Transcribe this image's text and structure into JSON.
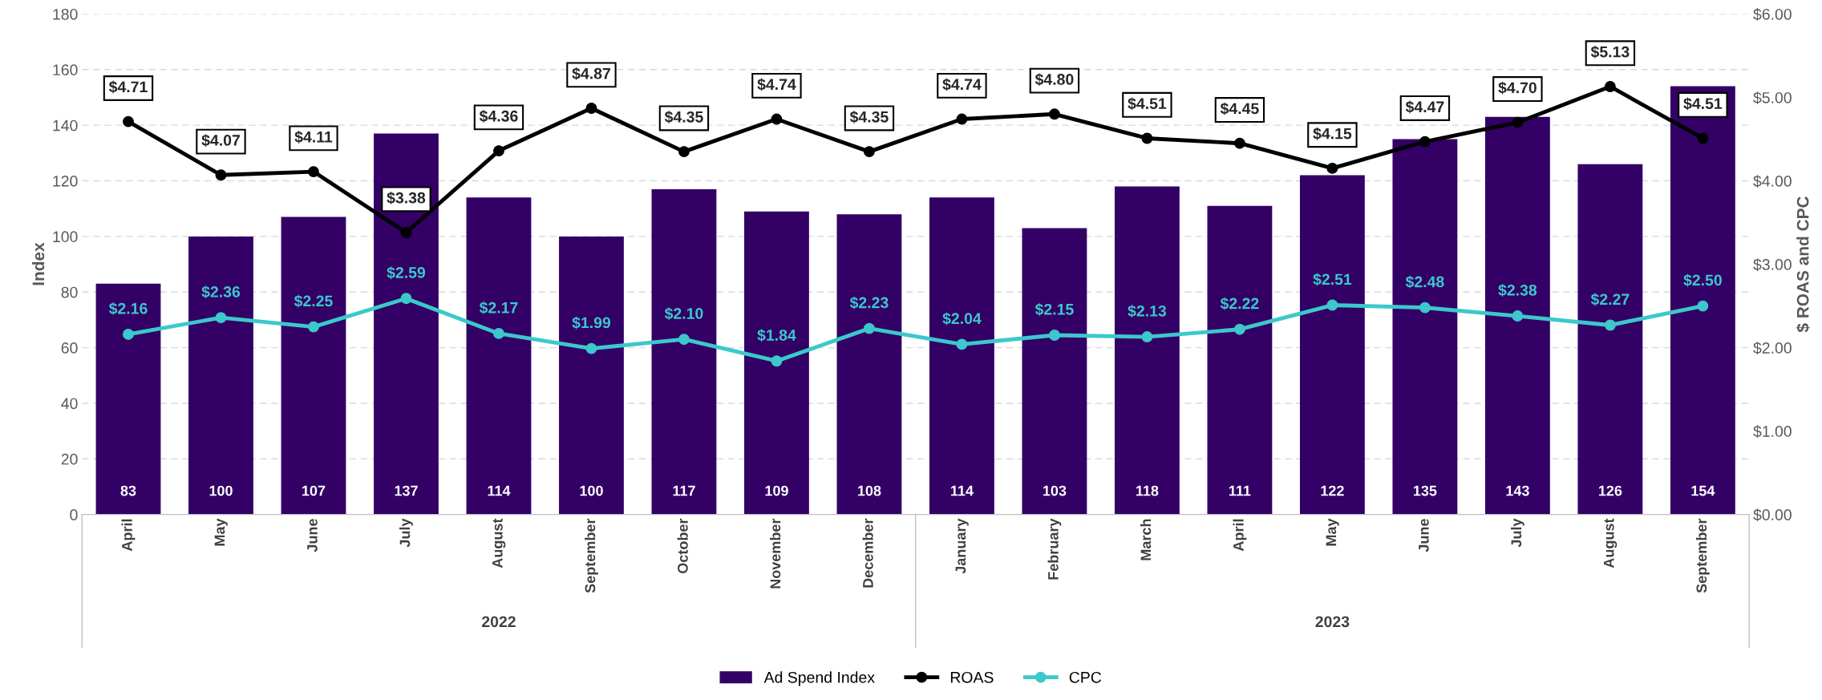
{
  "chart_data": {
    "type": "bar",
    "ylabel": "Index",
    "y2label": "$ ROAS and CPC",
    "categories": [
      "April",
      "May",
      "June",
      "July",
      "August",
      "September",
      "October",
      "November",
      "December",
      "January",
      "February",
      "March",
      "April",
      "May",
      "June",
      "July",
      "August",
      "September"
    ],
    "series": [
      {
        "name": "Ad Spend Index",
        "color": "#330066",
        "values": [
          83,
          100,
          107,
          137,
          114,
          100,
          117,
          109,
          108,
          114,
          103,
          118,
          111,
          122,
          135,
          143,
          126,
          154
        ],
        "value_labels": [
          "83",
          "100",
          "107",
          "137",
          "114",
          "100",
          "117",
          "109",
          "108",
          "114",
          "103",
          "118",
          "111",
          "122",
          "135",
          "143",
          "126",
          "154"
        ]
      },
      {
        "name": "ROAS",
        "type": "line",
        "axis": "y2",
        "color": "#000000",
        "marker": "circle",
        "values": [
          4.71,
          4.07,
          4.11,
          3.38,
          4.36,
          4.87,
          4.35,
          4.74,
          4.35,
          4.74,
          4.8,
          4.51,
          4.45,
          4.15,
          4.47,
          4.7,
          5.13,
          4.51
        ],
        "value_labels": [
          "$4.71",
          "$4.07",
          "$4.11",
          "$3.38",
          "$4.36",
          "$4.87",
          "$4.35",
          "$4.74",
          "$4.35",
          "$4.74",
          "$4.80",
          "$4.51",
          "$4.45",
          "$4.15",
          "$4.47",
          "$4.70",
          "$5.13",
          "$4.51"
        ]
      },
      {
        "name": "CPC",
        "type": "line",
        "axis": "y2",
        "color": "#3cc8cc",
        "marker": "circle",
        "values": [
          2.16,
          2.36,
          2.25,
          2.59,
          2.17,
          1.99,
          2.1,
          1.84,
          2.23,
          2.04,
          2.15,
          2.13,
          2.22,
          2.51,
          2.48,
          2.38,
          2.27,
          2.5
        ],
        "value_labels": [
          "$2.16",
          "$2.36",
          "$2.25",
          "$2.59",
          "$2.17",
          "$1.99",
          "$2.10",
          "$1.84",
          "$2.23",
          "$2.04",
          "$2.15",
          "$2.13",
          "$2.22",
          "$2.51",
          "$2.48",
          "$2.38",
          "$2.27",
          "$2.50"
        ]
      }
    ],
    "ylim": [
      0,
      180
    ],
    "yticks": [
      0,
      20,
      40,
      60,
      80,
      100,
      120,
      140,
      160,
      180
    ],
    "y2lim": [
      0,
      6
    ],
    "y2ticks": [
      {
        "value": 0,
        "label": "$0.00"
      },
      {
        "value": 1,
        "label": "$1.00"
      },
      {
        "value": 2,
        "label": "$2.00"
      },
      {
        "value": 3,
        "label": "$3.00"
      },
      {
        "value": 4,
        "label": "$4.00"
      },
      {
        "value": 5,
        "label": "$5.00"
      },
      {
        "value": 6,
        "label": "$6.00"
      }
    ],
    "grid": "y",
    "legend": "bottom",
    "annotations": [
      "2022",
      "2023"
    ]
  }
}
